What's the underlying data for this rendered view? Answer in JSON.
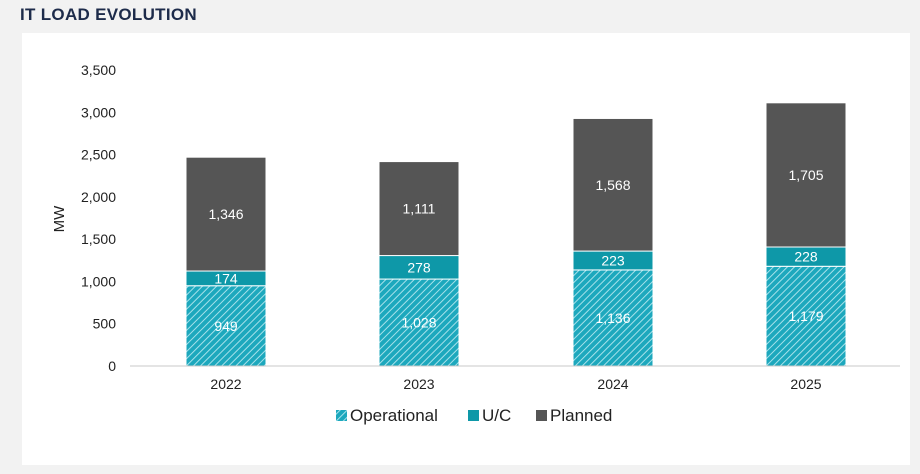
{
  "header": {
    "title": "IT LOAD EVOLUTION"
  },
  "chart_data": {
    "type": "bar",
    "stacked": true,
    "categories": [
      "2022",
      "2023",
      "2024",
      "2025"
    ],
    "series": [
      {
        "name": "Operational",
        "values": [
          949,
          1028,
          1136,
          1179
        ],
        "labels": [
          "949",
          "1,028",
          "1,136",
          "1,179"
        ],
        "color": "#1da8bd",
        "pattern": "hatched"
      },
      {
        "name": "U/C",
        "values": [
          174,
          278,
          223,
          228
        ],
        "labels": [
          "174",
          "278",
          "223",
          "228"
        ],
        "color": "#0e98a8"
      },
      {
        "name": "Planned",
        "values": [
          1346,
          1111,
          1568,
          1705
        ],
        "labels": [
          "1,346",
          "1,111",
          "1,568",
          "1,705"
        ],
        "color": "#555555"
      }
    ],
    "ylabel": "MW",
    "xlabel": "",
    "ylim": [
      0,
      3500
    ],
    "yticks": [
      0,
      500,
      1000,
      1500,
      2000,
      2500,
      3000,
      3500
    ],
    "ytick_labels": [
      "0",
      "500",
      "1,000",
      "1,500",
      "2,000",
      "2,500",
      "3,000",
      "3,500"
    ],
    "grid": false,
    "legend_position": "bottom"
  }
}
